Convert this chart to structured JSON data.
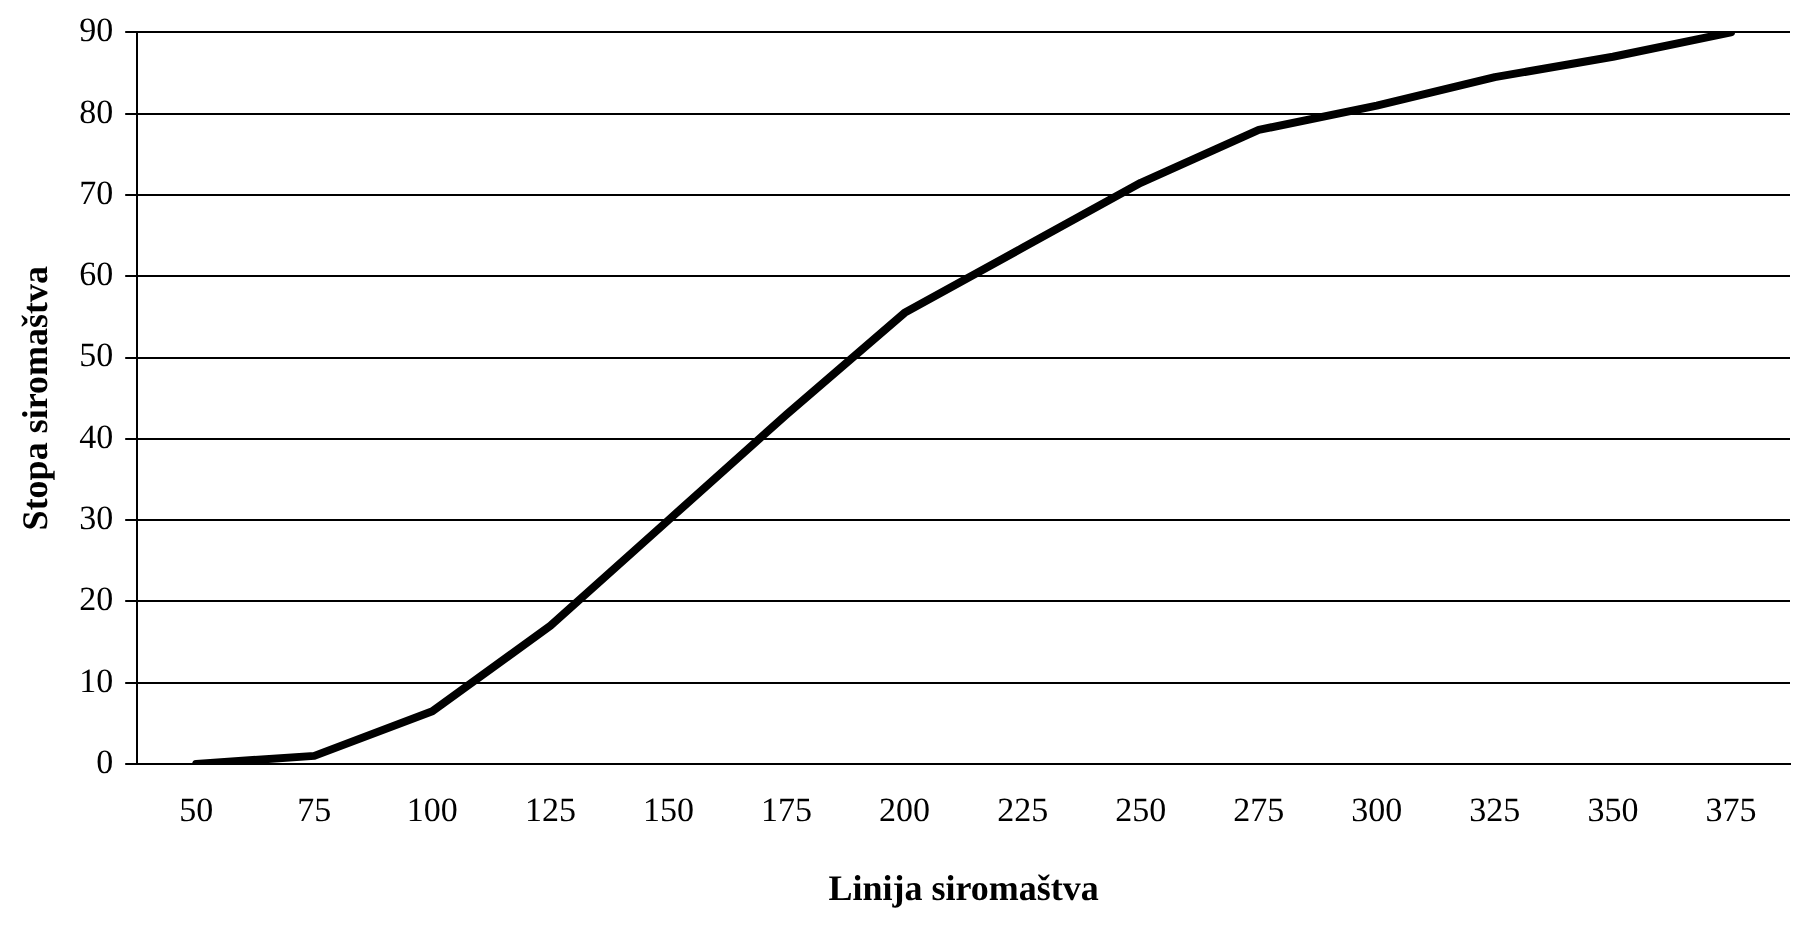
{
  "chart_data": {
    "type": "line",
    "xlabel": "Linija siromaštva",
    "ylabel": "Stopa siromaštva",
    "categories": [
      "50",
      "75",
      "100",
      "125",
      "150",
      "175",
      "200",
      "225",
      "250",
      "275",
      "300",
      "325",
      "350",
      "375"
    ],
    "series": [
      {
        "color": "#000000",
        "values": [
          0,
          1,
          6.5,
          17,
          30,
          43,
          55.5,
          63.5,
          71.5,
          78,
          81,
          84.5,
          87,
          90
        ]
      }
    ],
    "ylim": [
      0,
      90
    ],
    "yticks": [
      0,
      10,
      20,
      30,
      40,
      50,
      60,
      70,
      80,
      90
    ],
    "grid": "y",
    "legend": false,
    "marker": "none",
    "line_style": "solid"
  }
}
